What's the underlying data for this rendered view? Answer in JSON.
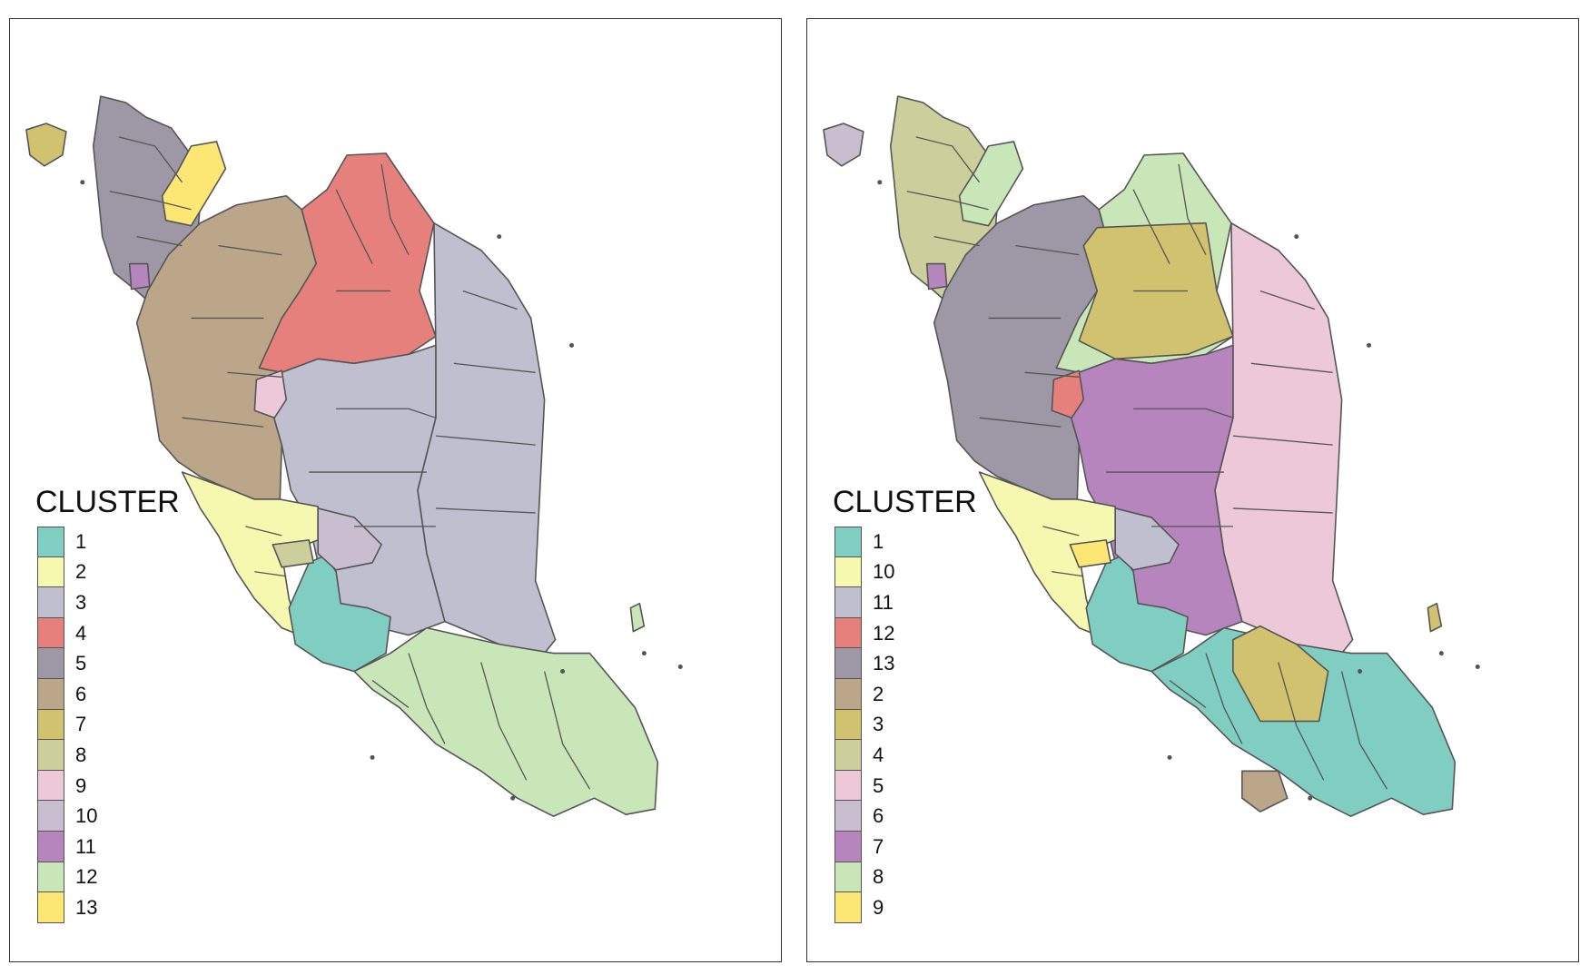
{
  "maps": [
    {
      "legend_title": "CLUSTER",
      "legend": [
        {
          "label": "1",
          "color": "#80cdc1"
        },
        {
          "label": "2",
          "color": "#f6f8b0"
        },
        {
          "label": "3",
          "color": "#c0bfcf"
        },
        {
          "label": "4",
          "color": "#e5807c"
        },
        {
          "label": "5",
          "color": "#9e97a6"
        },
        {
          "label": "6",
          "color": "#bca68a"
        },
        {
          "label": "7",
          "color": "#d1c26f"
        },
        {
          "label": "8",
          "color": "#cccf9b"
        },
        {
          "label": "9",
          "color": "#edc8d9"
        },
        {
          "label": "10",
          "color": "#c9bdd0"
        },
        {
          "label": "11",
          "color": "#b685bd"
        },
        {
          "label": "12",
          "color": "#c9e6b8"
        },
        {
          "label": "13",
          "color": "#fde774"
        }
      ],
      "region_colors": {
        "north_west": "#9e97a6",
        "north_island": "#d1c26f",
        "north_enclave": "#fde774",
        "north_purple": "#b685bd",
        "west_central": "#bca68a",
        "north_east": "#e5807c",
        "east_coast": "#c0bfcf",
        "centre_east": "#c0bfcf",
        "central_pink": "#edc8d9",
        "south_west_coast": "#f6f8b0",
        "selangor_teal": "#80cdc1",
        "small_green": "#cccf9b",
        "central_lilac": "#c9bdd0",
        "south": "#c9e6b8",
        "island_east": "#c9e6b8"
      }
    },
    {
      "legend_title": "CLUSTER",
      "legend": [
        {
          "label": "1",
          "color": "#80cdc1"
        },
        {
          "label": "10",
          "color": "#f6f8b0"
        },
        {
          "label": "11",
          "color": "#c0bfcf"
        },
        {
          "label": "12",
          "color": "#e5807c"
        },
        {
          "label": "13",
          "color": "#9e97a6"
        },
        {
          "label": "2",
          "color": "#bca68a"
        },
        {
          "label": "3",
          "color": "#d1c26f"
        },
        {
          "label": "4",
          "color": "#cccf9b"
        },
        {
          "label": "5",
          "color": "#edc8d9"
        },
        {
          "label": "6",
          "color": "#c9bdd0"
        },
        {
          "label": "7",
          "color": "#b685bd"
        },
        {
          "label": "8",
          "color": "#c9e6b8"
        },
        {
          "label": "9",
          "color": "#fde774"
        }
      ],
      "region_colors": {
        "north_west": "#cccf9b",
        "north_island": "#c9bdd0",
        "north_enclave": "#c9e6b8",
        "north_purple": "#b685bd",
        "west_central": "#9e97a6",
        "north_east": "#c9e6b8",
        "north_center": "#d1c26f",
        "east_coast": "#edc8d9",
        "centre_east": "#b685bd",
        "central_pink": "#e5807c",
        "south_west_coast": "#f6f8b0",
        "selangor_teal": "#80cdc1",
        "small_green": "#fde774",
        "central_lilac": "#c0bfcf",
        "south": "#80cdc1",
        "south_tip": "#bca68a",
        "east_gold": "#d1c26f",
        "island_east": "#d1c26f"
      }
    }
  ]
}
